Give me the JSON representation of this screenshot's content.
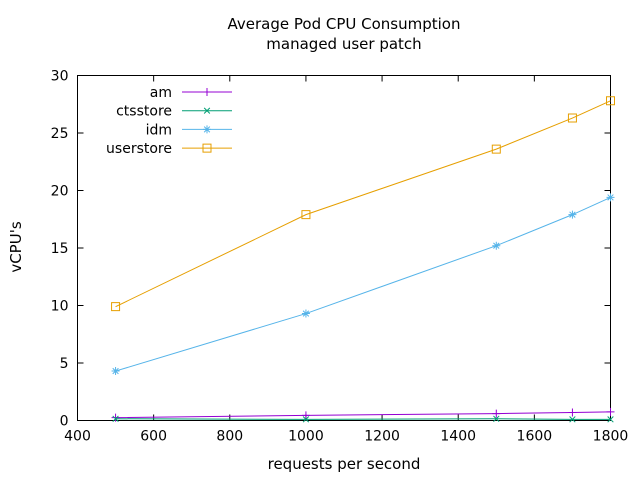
{
  "chart_data": {
    "type": "line",
    "title": "Average Pod CPU Consumption",
    "subtitle": "managed user patch",
    "xlabel": "requests per second",
    "ylabel": "vCPU's",
    "xlim": [
      400,
      1800
    ],
    "ylim": [
      0,
      30
    ],
    "xticks": [
      400,
      600,
      800,
      1000,
      1200,
      1400,
      1600,
      1800
    ],
    "yticks": [
      0,
      5,
      10,
      15,
      20,
      25,
      30
    ],
    "grid": false,
    "border_color": "#000000",
    "legend": {
      "position": "top-left-inside",
      "entries": [
        "am",
        "ctsstore",
        "idm",
        "userstore"
      ]
    },
    "x": [
      500,
      1000,
      1500,
      1700,
      1800
    ],
    "series": [
      {
        "name": "am",
        "color": "#9400D3",
        "marker": "plus",
        "values": [
          0.25,
          0.45,
          0.6,
          0.7,
          0.75
        ]
      },
      {
        "name": "ctsstore",
        "color": "#009E73",
        "marker": "cross",
        "values": [
          0.15,
          0.1,
          0.15,
          0.1,
          0.1
        ]
      },
      {
        "name": "idm",
        "color": "#56B4E9",
        "marker": "asterisk",
        "values": [
          4.3,
          9.3,
          15.2,
          17.9,
          19.4
        ]
      },
      {
        "name": "userstore",
        "color": "#E69F00",
        "marker": "square",
        "values": [
          9.9,
          17.9,
          23.6,
          26.3,
          27.8
        ]
      }
    ]
  }
}
